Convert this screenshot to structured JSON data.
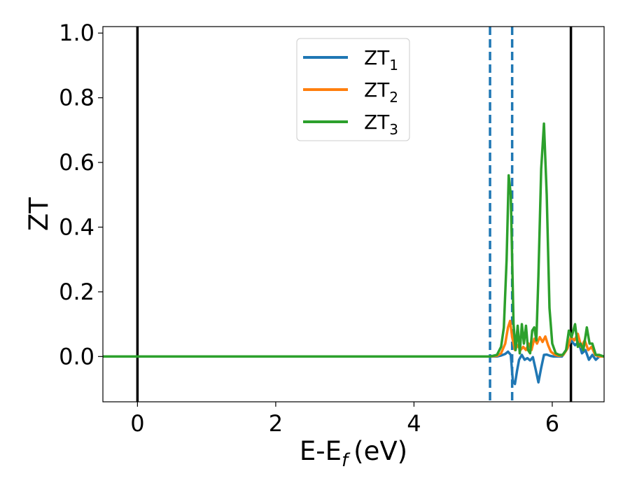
{
  "chart_data": {
    "type": "line",
    "xlabel": "E-E",
    "xlabel_sub": "f",
    "xlabel_unit": "(eV)",
    "ylabel": "ZT",
    "xlim": [
      -0.5,
      6.75
    ],
    "ylim": [
      -0.14,
      1.02
    ],
    "grid": false,
    "legend_position": "top-center",
    "x_ticks": [
      0,
      2,
      4,
      6
    ],
    "x_tick_labels": [
      "0",
      "2",
      "4",
      "6"
    ],
    "y_ticks": [
      0.0,
      0.2,
      0.4,
      0.6,
      0.8,
      1.0
    ],
    "y_tick_labels": [
      "0.0",
      "0.2",
      "0.4",
      "0.6",
      "0.8",
      "1.0"
    ],
    "vertical_lines": [
      {
        "x": 0.0,
        "style": "solid",
        "color": "#000000"
      },
      {
        "x": 6.27,
        "style": "solid",
        "color": "#000000"
      },
      {
        "x": 5.1,
        "style": "dashed",
        "color": "#1f77b4"
      },
      {
        "x": 5.42,
        "style": "dashed",
        "color": "#1f77b4"
      }
    ],
    "series": [
      {
        "name": "ZT",
        "name_sub": "1",
        "color": "#1f77b4",
        "x": [
          -0.5,
          5.1,
          5.2,
          5.26,
          5.32,
          5.36,
          5.4,
          5.43,
          5.46,
          5.49,
          5.52,
          5.56,
          5.6,
          5.64,
          5.68,
          5.72,
          5.76,
          5.8,
          5.84,
          5.88,
          5.92,
          5.97,
          6.02,
          6.08,
          6.14,
          6.2,
          6.27,
          6.33,
          6.38,
          6.43,
          6.48,
          6.53,
          6.58,
          6.63,
          6.68,
          6.75
        ],
        "y": [
          0.0,
          0.0,
          0.0,
          0.003,
          0.008,
          0.015,
          0.005,
          -0.075,
          -0.085,
          -0.045,
          -0.01,
          0.005,
          -0.01,
          -0.005,
          -0.012,
          -0.002,
          -0.04,
          -0.08,
          -0.035,
          0.005,
          0.006,
          0.002,
          0.0,
          0.0,
          0.0,
          0.02,
          0.05,
          0.035,
          0.045,
          0.01,
          0.02,
          -0.01,
          0.005,
          -0.01,
          0.0,
          0.0
        ]
      },
      {
        "name": "ZT",
        "name_sub": "2",
        "color": "#ff7f0e",
        "x": [
          -0.5,
          5.1,
          5.2,
          5.26,
          5.32,
          5.36,
          5.39,
          5.42,
          5.46,
          5.5,
          5.54,
          5.58,
          5.62,
          5.66,
          5.7,
          5.74,
          5.78,
          5.82,
          5.86,
          5.9,
          5.94,
          5.98,
          6.04,
          6.1,
          6.16,
          6.22,
          6.27,
          6.32,
          6.37,
          6.42,
          6.47,
          6.52,
          6.57,
          6.62,
          6.68,
          6.75
        ],
        "y": [
          0.0,
          0.0,
          0.002,
          0.01,
          0.04,
          0.09,
          0.11,
          0.06,
          0.02,
          0.035,
          0.02,
          0.03,
          0.02,
          0.04,
          0.02,
          0.055,
          0.04,
          0.06,
          0.045,
          0.062,
          0.035,
          0.015,
          0.005,
          0.002,
          0.005,
          0.025,
          0.06,
          0.05,
          0.07,
          0.03,
          0.05,
          0.02,
          0.03,
          0.005,
          0.0,
          0.0
        ]
      },
      {
        "name": "ZT",
        "name_sub": "3",
        "color": "#2ca02c",
        "x": [
          -0.5,
          5.1,
          5.2,
          5.26,
          5.3,
          5.34,
          5.37,
          5.4,
          5.44,
          5.47,
          5.5,
          5.53,
          5.56,
          5.59,
          5.62,
          5.65,
          5.68,
          5.71,
          5.74,
          5.77,
          5.8,
          5.84,
          5.88,
          5.92,
          5.96,
          6.0,
          6.05,
          6.1,
          6.15,
          6.2,
          6.24,
          6.28,
          6.33,
          6.37,
          6.41,
          6.45,
          6.5,
          6.54,
          6.58,
          6.63,
          6.68,
          6.75
        ],
        "y": [
          0.0,
          0.0,
          0.005,
          0.03,
          0.09,
          0.3,
          0.56,
          0.5,
          0.1,
          0.02,
          0.095,
          0.01,
          0.1,
          0.04,
          0.095,
          0.02,
          0.01,
          0.08,
          0.09,
          0.05,
          0.25,
          0.58,
          0.72,
          0.5,
          0.15,
          0.04,
          0.01,
          0.005,
          0.005,
          0.02,
          0.08,
          0.06,
          0.1,
          0.03,
          0.04,
          0.02,
          0.09,
          0.04,
          0.04,
          0.005,
          0.005,
          0.0
        ]
      }
    ]
  }
}
